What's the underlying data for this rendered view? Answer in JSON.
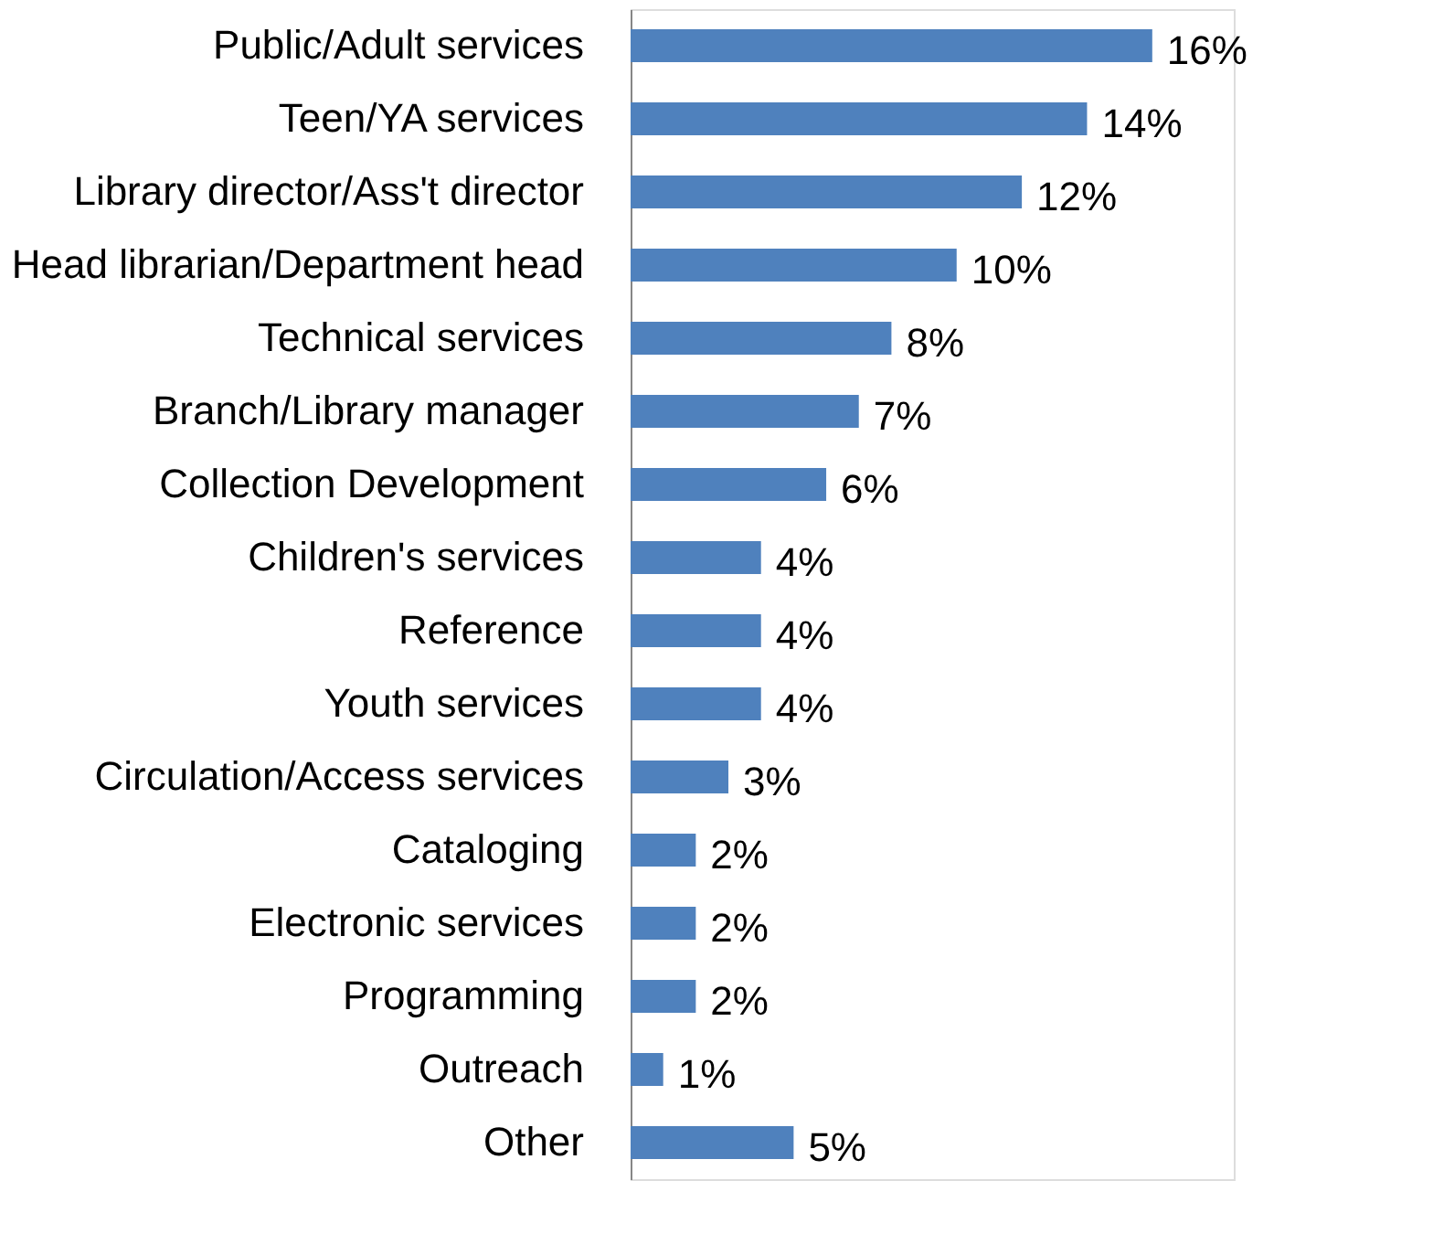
{
  "chart_data": {
    "type": "bar",
    "orientation": "horizontal",
    "categories": [
      "Public/Adult services",
      "Teen/YA services",
      "Library director/Ass't director",
      "Head librarian/Department head",
      "Technical services",
      "Branch/Library manager",
      "Collection Development",
      "Children's services",
      "Reference",
      "Youth services",
      "Circulation/Access services",
      "Cataloging",
      "Electronic services",
      "Programming",
      "Outreach",
      "Other"
    ],
    "values": [
      16,
      14,
      12,
      10,
      8,
      7,
      6,
      4,
      4,
      4,
      3,
      2,
      2,
      2,
      1,
      5
    ],
    "value_labels": [
      "16%",
      "14%",
      "12%",
      "10%",
      "8%",
      "7%",
      "6%",
      "4%",
      "4%",
      "4%",
      "3%",
      "2%",
      "2%",
      "2%",
      "1%",
      "5%"
    ],
    "color": "#4f81bd",
    "xlim": [
      0,
      18.5
    ],
    "tick_labels": "y",
    "grid": false
  }
}
